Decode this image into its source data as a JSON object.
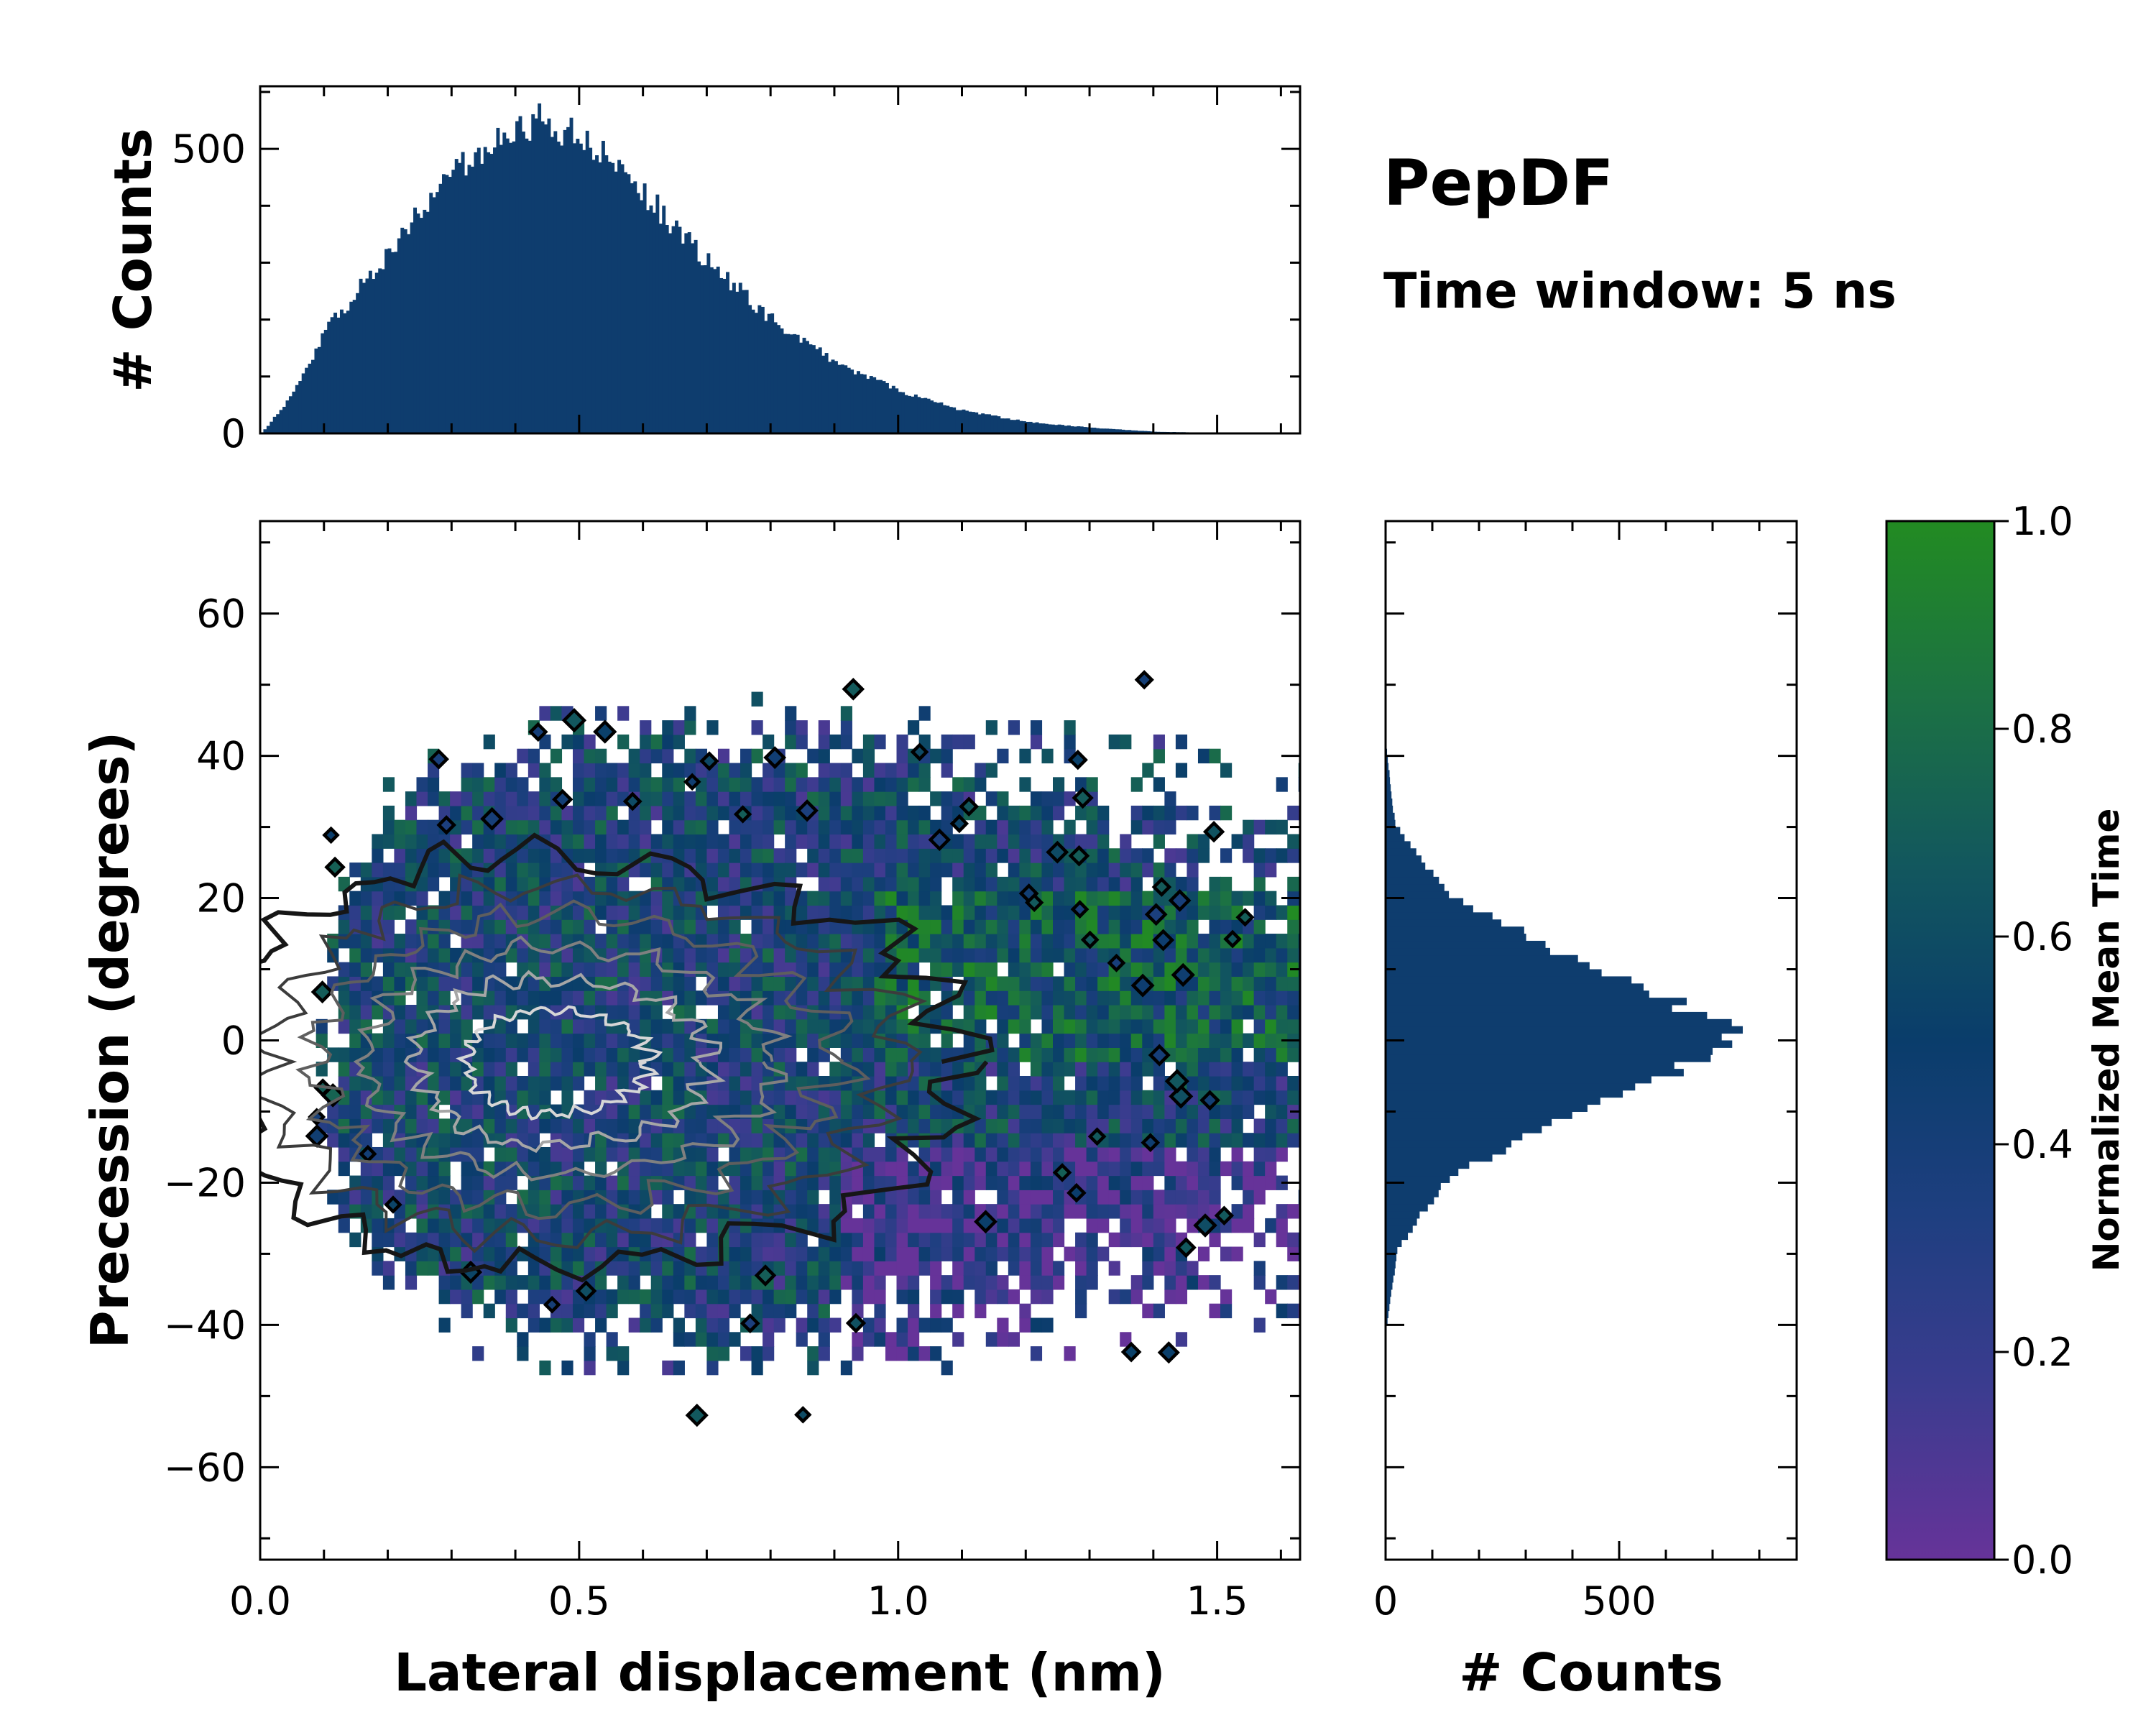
{
  "figure": {
    "title": "PepDF",
    "subtitle": "Time window: 5 ns"
  },
  "chart_data": [
    {
      "type": "heatmap",
      "name": "joint-distribution",
      "xlabel": "Lateral displacement (nm)",
      "ylabel": "Precession (degrees)",
      "xlim": [
        0.0,
        1.63
      ],
      "ylim": [
        -73,
        73
      ],
      "xticks": [
        "0.0",
        "0.5",
        "1.0",
        "1.5"
      ],
      "xtick_values": [
        0.0,
        0.5,
        1.0,
        1.5
      ],
      "yticks": [
        "60",
        "40",
        "20",
        "0",
        "−20",
        "−40",
        "−60"
      ],
      "ytick_values": [
        60,
        40,
        20,
        0,
        -20,
        -40,
        -60
      ],
      "distribution": {
        "x_mode": 0.45,
        "x_scale": 0.27,
        "y_center": 0.0,
        "y_sd": 13.5
      },
      "contour_levels": 6,
      "contour_colors": [
        "#161616",
        "#3c3c3c",
        "#5e5e5e",
        "#808080",
        "#a6a6a6",
        "#d6d6d6"
      ]
    },
    {
      "type": "bar",
      "name": "top-marginal-histogram",
      "ylabel": "# Counts",
      "xlim": [
        0.0,
        1.63
      ],
      "ylim": [
        0,
        610
      ],
      "yticks": [
        "0",
        "500"
      ],
      "ytick_values": [
        0,
        500
      ],
      "bin_width": 0.005,
      "bin_centers_range": [
        0.0,
        1.5
      ],
      "peak": {
        "x": 0.44,
        "count": 550
      },
      "approx_values": [
        {
          "x": 0.0,
          "count": 0
        },
        {
          "x": 0.05,
          "count": 70
        },
        {
          "x": 0.1,
          "count": 180
        },
        {
          "x": 0.2,
          "count": 320
        },
        {
          "x": 0.3,
          "count": 460
        },
        {
          "x": 0.4,
          "count": 535
        },
        {
          "x": 0.44,
          "count": 550
        },
        {
          "x": 0.5,
          "count": 520
        },
        {
          "x": 0.6,
          "count": 420
        },
        {
          "x": 0.7,
          "count": 300
        },
        {
          "x": 0.8,
          "count": 200
        },
        {
          "x": 0.9,
          "count": 125
        },
        {
          "x": 1.0,
          "count": 75
        },
        {
          "x": 1.1,
          "count": 40
        },
        {
          "x": 1.2,
          "count": 20
        },
        {
          "x": 1.3,
          "count": 10
        },
        {
          "x": 1.4,
          "count": 3
        },
        {
          "x": 1.5,
          "count": 1
        }
      ],
      "color": "#0e3d6e"
    },
    {
      "type": "bar",
      "orientation": "horizontal",
      "name": "right-marginal-histogram",
      "xlabel": "# Counts",
      "xlim": [
        0,
        880
      ],
      "ylim": [
        -73,
        73
      ],
      "xticks": [
        "0",
        "500"
      ],
      "xtick_values": [
        0,
        500
      ],
      "bin_width": 1.0,
      "peak": {
        "y": 0.5,
        "count": 760
      },
      "approx_values": [
        {
          "y": 40,
          "count": 3
        },
        {
          "y": 30,
          "count": 20
        },
        {
          "y": 20,
          "count": 130
        },
        {
          "y": 10,
          "count": 430
        },
        {
          "y": 5,
          "count": 620
        },
        {
          "y": 0,
          "count": 760
        },
        {
          "y": -5,
          "count": 610
        },
        {
          "y": -10,
          "count": 420
        },
        {
          "y": -20,
          "count": 130
        },
        {
          "y": -30,
          "count": 25
        },
        {
          "y": -40,
          "count": 4
        }
      ],
      "color": "#0e3d6e"
    },
    {
      "type": "colorbar",
      "name": "colorbar",
      "label": "Normalized Mean Time",
      "range": [
        0.0,
        1.0
      ],
      "ticks": [
        "0.0",
        "0.2",
        "0.4",
        "0.6",
        "0.8",
        "1.0"
      ],
      "tick_values": [
        0.0,
        0.2,
        0.4,
        0.6,
        0.8,
        1.0
      ],
      "colormap": [
        "#663399",
        "#3b3c8f",
        "#1e3f80",
        "#0a3d6b",
        "#12575e",
        "#1c7243",
        "#228b22"
      ]
    }
  ]
}
